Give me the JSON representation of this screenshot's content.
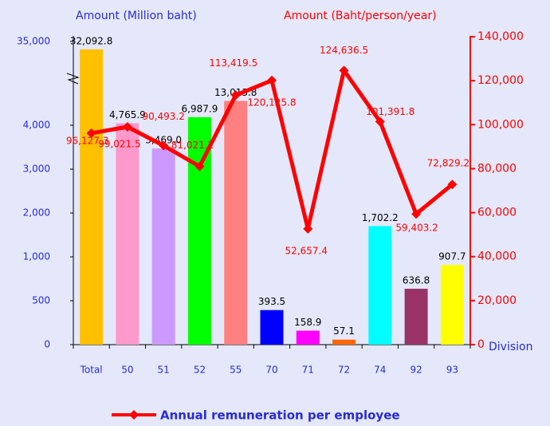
{
  "chart_data": {
    "type": "bar_line",
    "y_label": "Amount (Million baht)",
    "y2_label": "Amount (Baht/person/year)",
    "x_label": "Division",
    "categories": [
      "Total",
      "50",
      "51",
      "52",
      "55",
      "70",
      "71",
      "72",
      "74",
      "92",
      "93"
    ],
    "series": [
      {
        "name": "Amount (Million baht)",
        "type": "bar",
        "colors": [
          "#ffc000",
          "#ff99cc",
          "#cc99ff",
          "#00ff00",
          "#ff8080",
          "#0000ff",
          "#ff00ff",
          "#ff6600",
          "#00ffff",
          "#993366",
          "#ffff00"
        ],
        "values": [
          32092.8,
          4765.9,
          3469.0,
          6987.9,
          13013.8,
          393.5,
          158.9,
          57.1,
          1702.2,
          636.8,
          907.7
        ],
        "value_labels": [
          "32,092.8",
          "4,765.9",
          "3,469.0",
          "6,987.9",
          "13,013.8",
          "393.5",
          "158.9",
          "57.1",
          "1,702.2",
          "636.8",
          "907.7"
        ]
      },
      {
        "name": "Annual remuneration per employee",
        "type": "line",
        "axis": "y2",
        "color": "#ff0000",
        "values": [
          96127.3,
          99021.5,
          90493.2,
          81021.2,
          113419.5,
          120125.8,
          52657.4,
          124636.5,
          101391.8,
          59403.2,
          72829.2
        ],
        "value_labels": [
          "96,127.3",
          "99,021.5",
          "90,493.2",
          "81,021.2",
          "113,419.5",
          "120,125.8",
          "52,657.4",
          "124,636.5",
          "101,391.8",
          "59,403.2",
          "72,829.2"
        ]
      }
    ],
    "ylim": [
      0,
      35000
    ],
    "yticks": [
      0,
      500,
      {
        "value": 1000,
        "label": "1,000"
      },
      {
        "value": 2000,
        "label": "2,000"
      },
      {
        "value": 3000,
        "label": "3,000"
      },
      {
        "value": 4000,
        "label": "4,000"
      },
      {
        "value": 35000,
        "label": "35,000"
      }
    ],
    "y2lim": [
      0,
      140000
    ],
    "y2ticks": [
      0,
      {
        "value": 20000,
        "label": "20,000"
      },
      {
        "value": 40000,
        "label": "40,000"
      },
      {
        "value": 60000,
        "label": "60,000"
      },
      {
        "value": 80000,
        "label": "80,000"
      },
      {
        "value": 100000,
        "label": "100,000"
      },
      {
        "value": 120000,
        "label": "120,000"
      },
      {
        "value": 140000,
        "label": "140,000"
      }
    ],
    "y_axis_break": true
  }
}
